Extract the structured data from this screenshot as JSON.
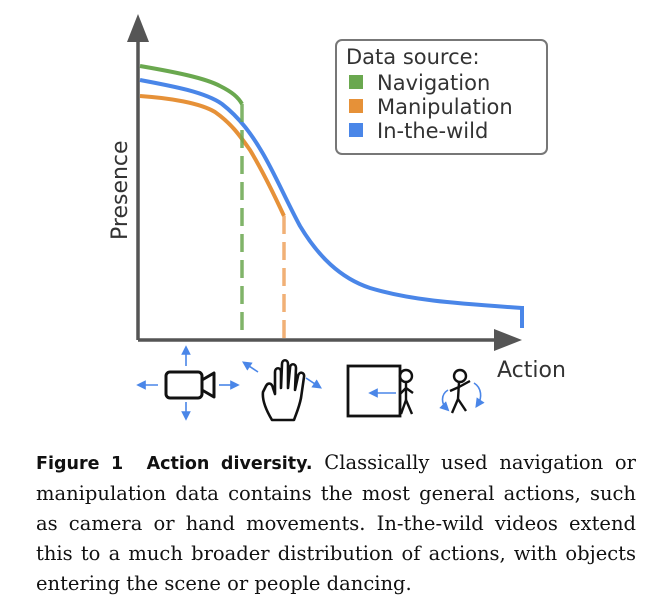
{
  "chart_data": {
    "type": "line",
    "xlabel": "Action",
    "ylabel": "Presence",
    "legend": {
      "title": "Data source:",
      "position": "top-right",
      "entries": [
        {
          "name": "Navigation",
          "color": "#6aa84f"
        },
        {
          "name": "Manipulation",
          "color": "#e69138"
        },
        {
          "name": "In-the-wild",
          "color": "#4a86e8"
        }
      ]
    },
    "grid": false,
    "icons": [
      "camera-icon",
      "hand-icon",
      "object-entering-scene-icon",
      "dancing-person-icon"
    ]
  },
  "caption": {
    "label": "Figure 1",
    "title": "Action diversity.",
    "body": "Classically used navigation or manipulation data contains the most general actions, such as camera or hand movements. In-the-wild videos extend this to a much broader distribution of actions, with objects entering the scene or people dancing."
  }
}
